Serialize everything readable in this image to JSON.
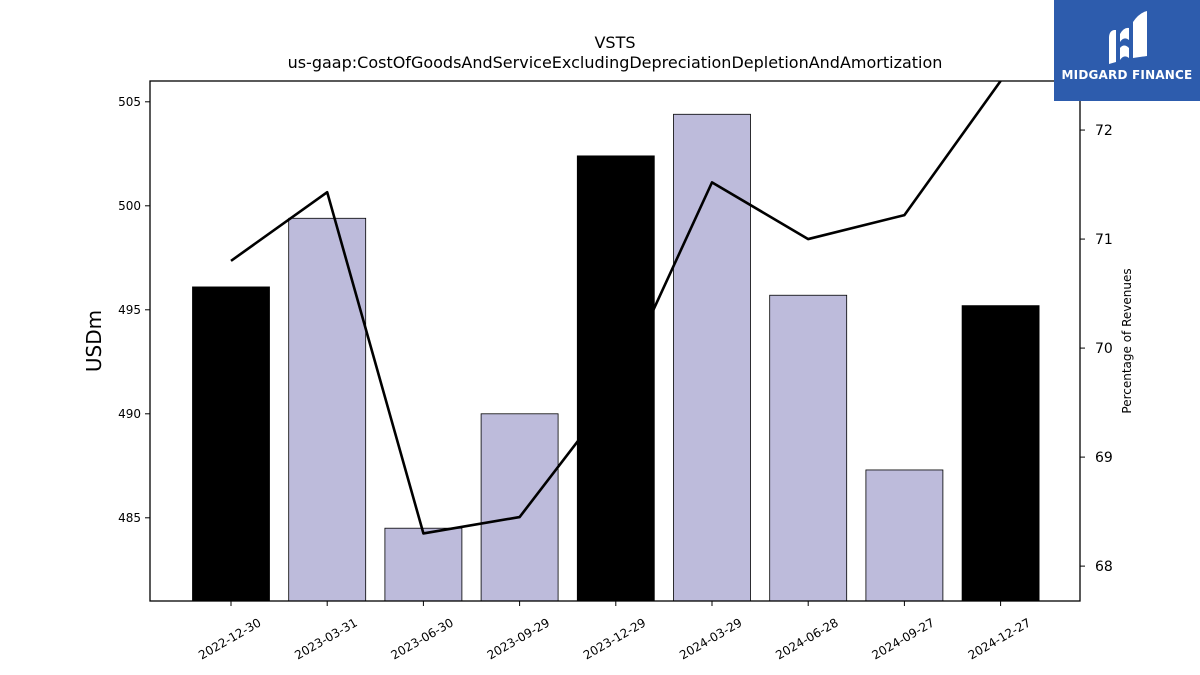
{
  "chart_data": {
    "type": "bar",
    "title": "VSTS",
    "subtitle": "us-gaap:CostOfGoodsAndServiceExcludingDepreciationDepletionAndAmortization",
    "categories": [
      "2022-12-30",
      "2023-03-31",
      "2023-06-30",
      "2023-09-29",
      "2023-12-29",
      "2024-03-29",
      "2024-06-28",
      "2024-09-27",
      "2024-12-27"
    ],
    "ylabel": "USDm",
    "y2label": "Percentage of Revenues",
    "ylim": [
      481,
      506
    ],
    "y2lim": [
      67.68,
      72.45
    ],
    "yticks": [
      485,
      490,
      495,
      500,
      505
    ],
    "y2ticks": [
      68,
      69,
      70,
      71,
      72
    ],
    "series": [
      {
        "type": "bar",
        "axis": "left",
        "values": [
          496.1,
          499.4,
          484.5,
          490.0,
          502.4,
          504.4,
          495.7,
          487.3,
          495.2
        ],
        "colors": [
          "#000000",
          "#bdbbdb",
          "#bdbbdb",
          "#bdbbdb",
          "#000000",
          "#bdbbdb",
          "#bdbbdb",
          "#bdbbdb",
          "#000000"
        ]
      },
      {
        "type": "line",
        "axis": "right",
        "color": "#000000",
        "values": [
          70.8,
          71.43,
          68.3,
          68.45,
          69.6,
          71.52,
          71.0,
          71.22,
          72.45
        ]
      }
    ],
    "grid": false,
    "legend": "none"
  },
  "logo": {
    "text": "MIDGARD FINANCE",
    "background": "#2d5cad"
  }
}
